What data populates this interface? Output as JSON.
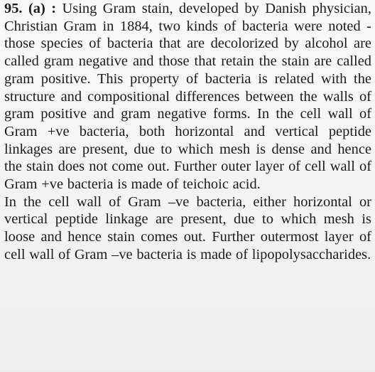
{
  "answer": {
    "number": "95. (a) :",
    "paragraph1": "Using Gram stain, developed by Danish physician, Christian Gram in 1884, two kinds of bacteria were noted - those species of bacteria that are decolorized by alcohol are called gram negative and those that retain the stain are called gram positive. This property of bacteria is related with the structure and compositional differences between the walls of gram positive and gram negative forms. In the cell wall of Gram +ve bacteria, both horizontal and vertical peptide linkages are present, due to which mesh is dense and hence the stain does not come out. Further outer layer of cell wall of Gram +ve bacteria is made of teichoic acid.",
    "paragraph2": "In the cell wall of Gram –ve bacteria, either horizontal or vertical peptide linkage are present, due to which mesh is loose and hence stain comes out. Further outermost layer of cell wall of Gram –ve bacteria is made of lipopolysaccharides."
  }
}
